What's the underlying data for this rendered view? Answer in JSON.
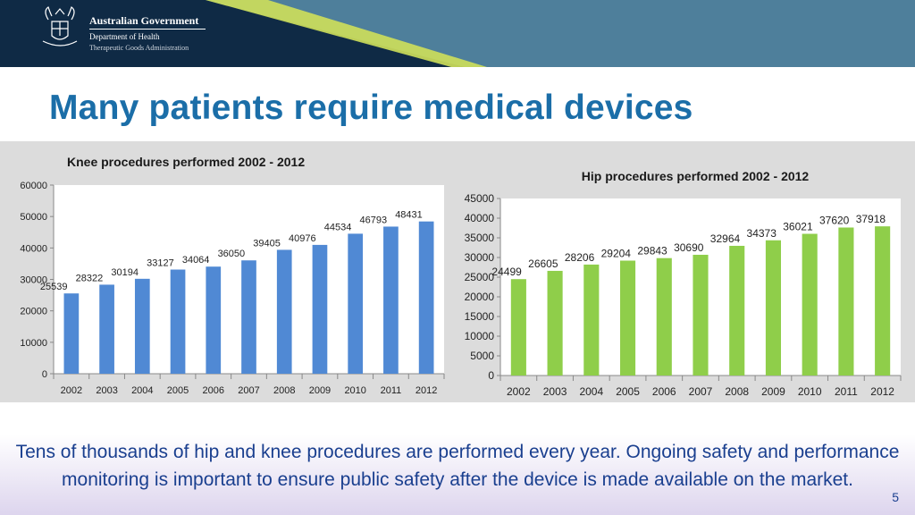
{
  "header": {
    "government": "Australian Government",
    "department": "Department of Health",
    "agency": "Therapeutic Goods Administration"
  },
  "slide": {
    "title": "Many patients require medical devices",
    "footer_text": "Tens of thousands of hip and knee procedures are performed every year. Ongoing safety and performance monitoring is important to ensure public safety after the device is made available on the market.",
    "number": "5"
  },
  "chart_data": [
    {
      "type": "bar",
      "title": "Knee procedures performed 2002 - 2012",
      "categories": [
        "2002",
        "2003",
        "2004",
        "2005",
        "2006",
        "2007",
        "2008",
        "2009",
        "2010",
        "2011",
        "2012"
      ],
      "values": [
        25539,
        28322,
        30194,
        33127,
        34064,
        36050,
        39405,
        40976,
        44534,
        46793,
        48431
      ],
      "ylim": [
        0,
        60000
      ],
      "yticks": [
        0,
        10000,
        20000,
        30000,
        40000,
        50000,
        60000
      ],
      "color": "#5089d4",
      "xlabel": "",
      "ylabel": ""
    },
    {
      "type": "bar",
      "title": "Hip procedures performed 2002 - 2012",
      "categories": [
        "2002",
        "2003",
        "2004",
        "2005",
        "2006",
        "2007",
        "2008",
        "2009",
        "2010",
        "2011",
        "2012"
      ],
      "values": [
        24499,
        26605,
        28206,
        29204,
        29843,
        30690,
        32964,
        34373,
        36021,
        37620,
        37918
      ],
      "ylim": [
        0,
        45000
      ],
      "yticks": [
        0,
        5000,
        10000,
        15000,
        20000,
        25000,
        30000,
        35000,
        40000,
        45000
      ],
      "color": "#8fce4a",
      "xlabel": "",
      "ylabel": ""
    }
  ]
}
